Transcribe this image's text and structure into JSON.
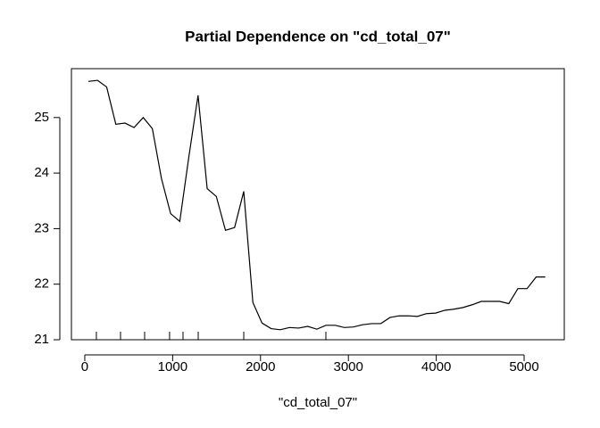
{
  "chart_data": {
    "type": "line",
    "title": "Partial Dependence on \"cd_total_07\"",
    "x_label": "\"cd_total_07\"",
    "x": [
      41,
      145,
      249,
      353,
      457,
      561,
      665,
      769,
      873,
      977,
      1081,
      1185,
      1289,
      1393,
      1497,
      1601,
      1705,
      1809,
      1913,
      2017,
      2121,
      2225,
      2329,
      2433,
      2537,
      2641,
      2745,
      2849,
      2953,
      3057,
      3161,
      3265,
      3369,
      3473,
      3577,
      3681,
      3785,
      3889,
      3993,
      4097,
      4201,
      4305,
      4409,
      4513,
      4617,
      4721,
      4825,
      4929,
      5033,
      5137,
      5241
    ],
    "series": [
      {
        "color": "#000000",
        "values": [
          25.65,
          25.67,
          25.55,
          24.88,
          24.9,
          24.82,
          25.0,
          24.8,
          23.9,
          23.27,
          23.13,
          24.3,
          25.4,
          23.72,
          23.58,
          22.97,
          23.02,
          23.67,
          21.67,
          21.3,
          21.2,
          21.18,
          21.22,
          21.21,
          21.24,
          21.19,
          21.26,
          21.26,
          21.22,
          21.23,
          21.27,
          21.29,
          21.29,
          21.4,
          21.43,
          21.43,
          21.42,
          21.47,
          21.48,
          21.53,
          21.55,
          21.58,
          21.63,
          21.69,
          21.69,
          21.69,
          21.65,
          21.92,
          21.92,
          22.13,
          22.13
        ]
      }
    ],
    "rug": [
      132,
      407,
      681,
      965,
      1118,
      1291,
      1809,
      2744
    ],
    "xlim": [
      -152,
      5457
    ],
    "ylim": [
      21,
      25.88
    ],
    "xticks": [
      0,
      1000,
      2000,
      3000,
      4000,
      5000
    ],
    "yticks": [
      21,
      22,
      23,
      24,
      25
    ]
  }
}
